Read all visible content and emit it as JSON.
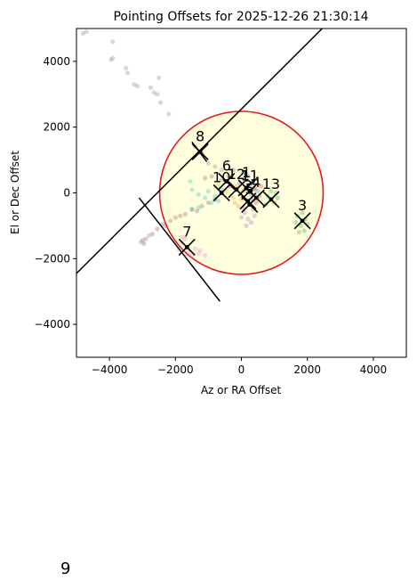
{
  "footer_label": "9",
  "chart_data": {
    "type": "scatter",
    "title": "Pointing Offsets for 2025-12-26 21:30:14",
    "xlabel": "Az or RA Offset",
    "ylabel": "El or Dec Offset",
    "xlim": [
      -5000,
      5000
    ],
    "ylim": [
      -5000,
      5000
    ],
    "xticks": [
      -4000,
      -2000,
      0,
      2000,
      4000
    ],
    "yticks": [
      4000,
      2000,
      0,
      -2000,
      -4000
    ],
    "xtick_labels": [
      "−4000",
      "−2000",
      "0",
      "2000",
      "4000"
    ],
    "ytick_labels": [
      "4000",
      "2000",
      "0",
      "−2000",
      "−4000"
    ],
    "grid": false,
    "circle": {
      "cx": 0,
      "cy": 0,
      "r": 2480,
      "edge_color": "#e31a1c",
      "fill_color": "#ffffde"
    },
    "lines": [
      {
        "x1": -5000,
        "y1": -2450,
        "x2": 2450,
        "y2": 5000,
        "color": "#000000"
      },
      {
        "x1": -3100,
        "y1": -150,
        "x2": -650,
        "y2": -3300,
        "color": "#000000"
      },
      {
        "x1": -1500,
        "y1": 1550,
        "x2": -1050,
        "y2": 950,
        "color": "#000000"
      }
    ],
    "markers": [
      {
        "label": "1",
        "x": 150,
        "y": 150,
        "color": "#1f77b4"
      },
      {
        "label": "2",
        "x": 200,
        "y": -250,
        "color": "#ff7f0e"
      },
      {
        "label": "3",
        "x": 1850,
        "y": -850,
        "color": "#2ca02c"
      },
      {
        "label": "4",
        "x": 450,
        "y": -150,
        "color": "#d62728"
      },
      {
        "label": "5",
        "x": 250,
        "y": -350,
        "color": "#9467bd"
      },
      {
        "label": "6",
        "x": -450,
        "y": 350,
        "color": "#8c564b"
      },
      {
        "label": "7",
        "x": -1650,
        "y": -1650,
        "color": "#e377c2"
      },
      {
        "label": "8",
        "x": -1250,
        "y": 1250,
        "color": "#7f7f7f"
      },
      {
        "label": "10",
        "x": -600,
        "y": 0,
        "color": "#17becf"
      },
      {
        "label": "11",
        "x": 250,
        "y": 50,
        "color": "#1f77b4"
      },
      {
        "label": "12",
        "x": -150,
        "y": 100,
        "color": "#ff7f0e"
      },
      {
        "label": "13",
        "x": 900,
        "y": -200,
        "color": "#2ca02c"
      }
    ],
    "scatter_points": [
      {
        "x": -4800,
        "y": 4850,
        "color": "#7f7f7f"
      },
      {
        "x": -4700,
        "y": 4900,
        "color": "#7f7f7f"
      },
      {
        "x": -3900,
        "y": 4600,
        "color": "#7f7f7f"
      },
      {
        "x": -3950,
        "y": 4050,
        "color": "#7f7f7f"
      },
      {
        "x": -3900,
        "y": 4100,
        "color": "#7f7f7f"
      },
      {
        "x": -3500,
        "y": 3800,
        "color": "#7f7f7f"
      },
      {
        "x": -3450,
        "y": 3650,
        "color": "#7f7f7f"
      },
      {
        "x": -3250,
        "y": 3300,
        "color": "#7f7f7f"
      },
      {
        "x": -3150,
        "y": 3250,
        "color": "#7f7f7f"
      },
      {
        "x": -2750,
        "y": 3200,
        "color": "#7f7f7f"
      },
      {
        "x": -2500,
        "y": 3500,
        "color": "#7f7f7f"
      },
      {
        "x": -2550,
        "y": 3000,
        "color": "#7f7f7f"
      },
      {
        "x": -2650,
        "y": 3050,
        "color": "#7f7f7f"
      },
      {
        "x": -2200,
        "y": 2400,
        "color": "#7f7f7f"
      },
      {
        "x": -2450,
        "y": 2750,
        "color": "#7f7f7f"
      },
      {
        "x": -1400,
        "y": 1400,
        "color": "#7f7f7f"
      },
      {
        "x": -1200,
        "y": 1200,
        "color": "#7f7f7f"
      },
      {
        "x": -1000,
        "y": 900,
        "color": "#7f7f7f"
      },
      {
        "x": -800,
        "y": 800,
        "color": "#7f7f7f"
      },
      {
        "x": -600,
        "y": 700,
        "color": "#7f7f7f"
      },
      {
        "x": -400,
        "y": 500,
        "color": "#7f7f7f"
      },
      {
        "x": -2900,
        "y": -1400,
        "color": "#8c564b"
      },
      {
        "x": -2700,
        "y": -1250,
        "color": "#8c564b"
      },
      {
        "x": -2550,
        "y": -1100,
        "color": "#8c564b"
      },
      {
        "x": -2400,
        "y": -950,
        "color": "#8c564b"
      },
      {
        "x": -2300,
        "y": -1000,
        "color": "#8c564b"
      },
      {
        "x": -2150,
        "y": -850,
        "color": "#8c564b"
      },
      {
        "x": -2000,
        "y": -750,
        "color": "#8c564b"
      },
      {
        "x": -1850,
        "y": -700,
        "color": "#8c564b"
      },
      {
        "x": -1700,
        "y": -650,
        "color": "#8c564b"
      },
      {
        "x": -1500,
        "y": -500,
        "color": "#8c564b"
      },
      {
        "x": -1350,
        "y": -550,
        "color": "#8c564b"
      },
      {
        "x": -1200,
        "y": -400,
        "color": "#8c564b"
      },
      {
        "x": -1000,
        "y": -300,
        "color": "#8c564b"
      },
      {
        "x": -800,
        "y": -200,
        "color": "#8c564b"
      },
      {
        "x": -3000,
        "y": -1450,
        "color": "#8c564b"
      },
      {
        "x": -2950,
        "y": -1550,
        "color": "#8c564b"
      },
      {
        "x": -3050,
        "y": -1500,
        "color": "#9467bd"
      },
      {
        "x": -2800,
        "y": -1300,
        "color": "#9467bd"
      },
      {
        "x": -1100,
        "y": 450,
        "color": "#8c564b"
      },
      {
        "x": -900,
        "y": 500,
        "color": "#8c564b"
      },
      {
        "x": -600,
        "y": 400,
        "color": "#8c564b"
      },
      {
        "x": -300,
        "y": 500,
        "color": "#8c564b"
      },
      {
        "x": -1500,
        "y": 100,
        "color": "#17becf"
      },
      {
        "x": -1300,
        "y": -50,
        "color": "#17becf"
      },
      {
        "x": -1100,
        "y": -150,
        "color": "#17becf"
      },
      {
        "x": -1000,
        "y": 50,
        "color": "#17becf"
      },
      {
        "x": -800,
        "y": -100,
        "color": "#17becf"
      },
      {
        "x": -700,
        "y": -250,
        "color": "#17becf"
      },
      {
        "x": -900,
        "y": -300,
        "color": "#17becf"
      },
      {
        "x": -1500,
        "y": -500,
        "color": "#17becf"
      },
      {
        "x": -1300,
        "y": -450,
        "color": "#17becf"
      },
      {
        "x": -600,
        "y": 100,
        "color": "#17becf"
      },
      {
        "x": -1550,
        "y": 350,
        "color": "#17becf"
      },
      {
        "x": 50,
        "y": 600,
        "color": "#1f77b4"
      },
      {
        "x": 150,
        "y": 400,
        "color": "#1f77b4"
      },
      {
        "x": 250,
        "y": 250,
        "color": "#1f77b4"
      },
      {
        "x": 350,
        "y": 350,
        "color": "#1f77b4"
      },
      {
        "x": 100,
        "y": 100,
        "color": "#1f77b4"
      },
      {
        "x": 300,
        "y": -50,
        "color": "#1f77b4"
      },
      {
        "x": 400,
        "y": 150,
        "color": "#1f77b4"
      },
      {
        "x": -50,
        "y": 300,
        "color": "#1f77b4"
      },
      {
        "x": 500,
        "y": 50,
        "color": "#1f77b4"
      },
      {
        "x": 200,
        "y": 500,
        "color": "#1f77b4"
      },
      {
        "x": -200,
        "y": -300,
        "color": "#ff7f0e"
      },
      {
        "x": -100,
        "y": -400,
        "color": "#ff7f0e"
      },
      {
        "x": 0,
        "y": -200,
        "color": "#ff7f0e"
      },
      {
        "x": -250,
        "y": -150,
        "color": "#ff7f0e"
      },
      {
        "x": 50,
        "y": 50,
        "color": "#ff7f0e"
      },
      {
        "x": -150,
        "y": 200,
        "color": "#ff7f0e"
      },
      {
        "x": -50,
        "y": 0,
        "color": "#ff7f0e"
      },
      {
        "x": 400,
        "y": 100,
        "color": "#d62728"
      },
      {
        "x": 550,
        "y": -100,
        "color": "#d62728"
      },
      {
        "x": 600,
        "y": 200,
        "color": "#d62728"
      },
      {
        "x": 450,
        "y": -300,
        "color": "#d62728"
      },
      {
        "x": 350,
        "y": -200,
        "color": "#d62728"
      },
      {
        "x": 100,
        "y": -600,
        "color": "#9467bd"
      },
      {
        "x": 200,
        "y": -800,
        "color": "#9467bd"
      },
      {
        "x": 300,
        "y": -900,
        "color": "#9467bd"
      },
      {
        "x": 150,
        "y": -1000,
        "color": "#9467bd"
      },
      {
        "x": 400,
        "y": -700,
        "color": "#9467bd"
      },
      {
        "x": 50,
        "y": -450,
        "color": "#9467bd"
      },
      {
        "x": 350,
        "y": -500,
        "color": "#9467bd"
      },
      {
        "x": 0,
        "y": -750,
        "color": "#9467bd"
      },
      {
        "x": 800,
        "y": -100,
        "color": "#2ca02c"
      },
      {
        "x": 1000,
        "y": -300,
        "color": "#2ca02c"
      },
      {
        "x": 900,
        "y": 50,
        "color": "#2ca02c"
      },
      {
        "x": 1100,
        "y": -150,
        "color": "#2ca02c"
      },
      {
        "x": 750,
        "y": -350,
        "color": "#2ca02c"
      },
      {
        "x": 1050,
        "y": 0,
        "color": "#2ca02c"
      },
      {
        "x": 1700,
        "y": -700,
        "color": "#2ca02c"
      },
      {
        "x": 1800,
        "y": -1000,
        "color": "#2ca02c"
      },
      {
        "x": 1950,
        "y": -800,
        "color": "#2ca02c"
      },
      {
        "x": 1900,
        "y": -1150,
        "color": "#2ca02c"
      },
      {
        "x": 1750,
        "y": -1200,
        "color": "#2ca02c"
      },
      {
        "x": 2000,
        "y": -950,
        "color": "#2ca02c"
      },
      {
        "x": 1650,
        "y": -900,
        "color": "#2ca02c"
      },
      {
        "x": 1850,
        "y": -600,
        "color": "#2ca02c"
      },
      {
        "x": -1800,
        "y": -1500,
        "color": "#e377c2"
      },
      {
        "x": -1600,
        "y": -1800,
        "color": "#e377c2"
      },
      {
        "x": -1400,
        "y": -1700,
        "color": "#e377c2"
      },
      {
        "x": -1500,
        "y": -1900,
        "color": "#e377c2"
      },
      {
        "x": -1300,
        "y": -1850,
        "color": "#e377c2"
      },
      {
        "x": -1700,
        "y": -1400,
        "color": "#e377c2"
      },
      {
        "x": -1900,
        "y": -1700,
        "color": "#e377c2"
      },
      {
        "x": -1100,
        "y": -1900,
        "color": "#e377c2"
      },
      {
        "x": -1250,
        "y": -1750,
        "color": "#e377c2"
      },
      {
        "x": -1800,
        "y": -1350,
        "color": "#e377c2"
      },
      {
        "x": -250,
        "y": 700,
        "color": "#8c564b"
      },
      {
        "x": -350,
        "y": 200,
        "color": "#8c564b"
      },
      {
        "x": -700,
        "y": 250,
        "color": "#bcbd22"
      },
      {
        "x": -450,
        "y": 50,
        "color": "#bcbd22"
      }
    ]
  }
}
